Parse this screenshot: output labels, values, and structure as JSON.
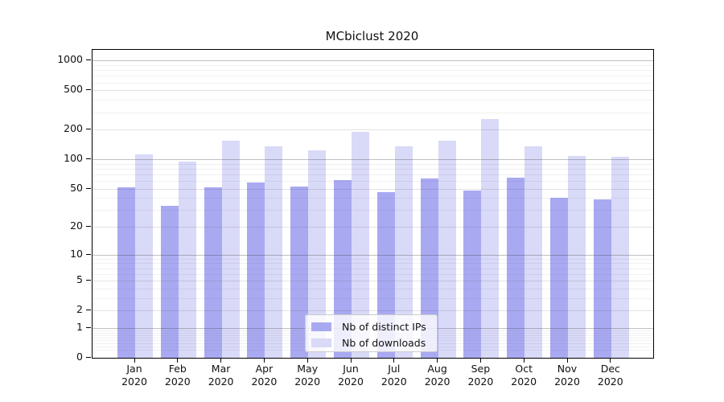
{
  "chart_data": {
    "type": "bar",
    "title": "MCbiclust 2020",
    "categories": [
      "Jan",
      "Feb",
      "Mar",
      "Apr",
      "May",
      "Jun",
      "Jul",
      "Aug",
      "Sep",
      "Oct",
      "Nov",
      "Dec"
    ],
    "category_year": "2020",
    "series": [
      {
        "name": "Nb of distinct IPs",
        "color": "#a9a9f2",
        "values": [
          52,
          33,
          52,
          58,
          53,
          61,
          46,
          64,
          48,
          65,
          40,
          39
        ]
      },
      {
        "name": "Nb of downloads",
        "color": "#d9d9f8",
        "values": [
          112,
          95,
          155,
          136,
          122,
          189,
          136,
          154,
          255,
          136,
          107,
          105
        ]
      }
    ],
    "y_ticks": [
      0,
      1,
      2,
      5,
      10,
      20,
      50,
      100,
      200,
      500,
      1000
    ],
    "y_scale": "log1p",
    "ylim": [
      0,
      1280
    ],
    "grid": true,
    "legend_position": "bottom-center",
    "grid_decade_ticks": [
      1,
      10,
      100,
      1000
    ]
  }
}
